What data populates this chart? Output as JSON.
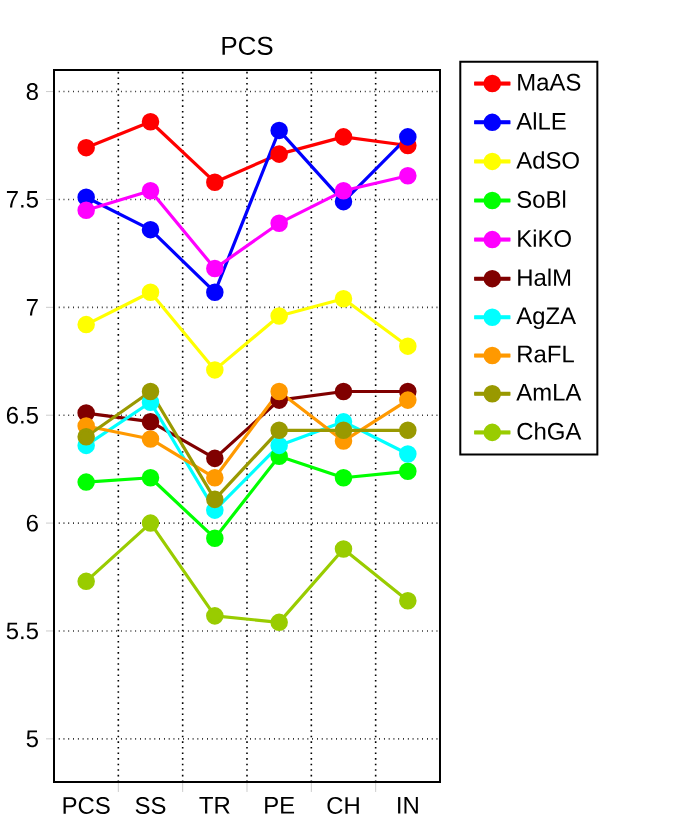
{
  "chart_data": {
    "type": "line",
    "title": "PCS",
    "categories": [
      "PCS",
      "SS",
      "TR",
      "PE",
      "CH",
      "IN"
    ],
    "series": [
      {
        "name": "MaAS",
        "color": "#ff0000",
        "values": [
          7.74,
          7.86,
          7.58,
          7.71,
          7.79,
          7.75
        ]
      },
      {
        "name": "AlLE",
        "color": "#0000ff",
        "values": [
          7.51,
          7.36,
          7.07,
          7.82,
          7.49,
          7.79
        ]
      },
      {
        "name": "AdSO",
        "color": "#ffff00",
        "values": [
          6.92,
          7.07,
          6.71,
          6.96,
          7.04,
          6.82
        ]
      },
      {
        "name": "SoBl",
        "color": "#00ff00",
        "values": [
          6.19,
          6.21,
          5.93,
          6.31,
          6.21,
          6.24
        ]
      },
      {
        "name": "KiKO",
        "color": "#ff00ff",
        "values": [
          7.45,
          7.54,
          7.18,
          7.39,
          7.54,
          7.61
        ]
      },
      {
        "name": "HalM",
        "color": "#800000",
        "values": [
          6.51,
          6.47,
          6.3,
          6.57,
          6.61,
          6.61
        ]
      },
      {
        "name": "AgZA",
        "color": "#00ffff",
        "values": [
          6.36,
          6.56,
          6.06,
          6.36,
          6.47,
          6.32
        ]
      },
      {
        "name": "RaFL",
        "color": "#ff9900",
        "values": [
          6.45,
          6.39,
          6.21,
          6.61,
          6.38,
          6.57
        ]
      },
      {
        "name": "AmLA",
        "color": "#999900",
        "values": [
          6.4,
          6.61,
          6.11,
          6.43,
          6.43,
          6.43
        ]
      },
      {
        "name": "ChGA",
        "color": "#99cc00",
        "values": [
          5.73,
          6.0,
          5.57,
          5.54,
          5.88,
          5.64
        ]
      }
    ],
    "ylim": [
      4.8,
      8.1
    ],
    "yticks": [
      5,
      5.5,
      6,
      6.5,
      7,
      7.5,
      8
    ],
    "grid": true,
    "legend": "top right",
    "marker": "circle",
    "line_style": "solid"
  }
}
